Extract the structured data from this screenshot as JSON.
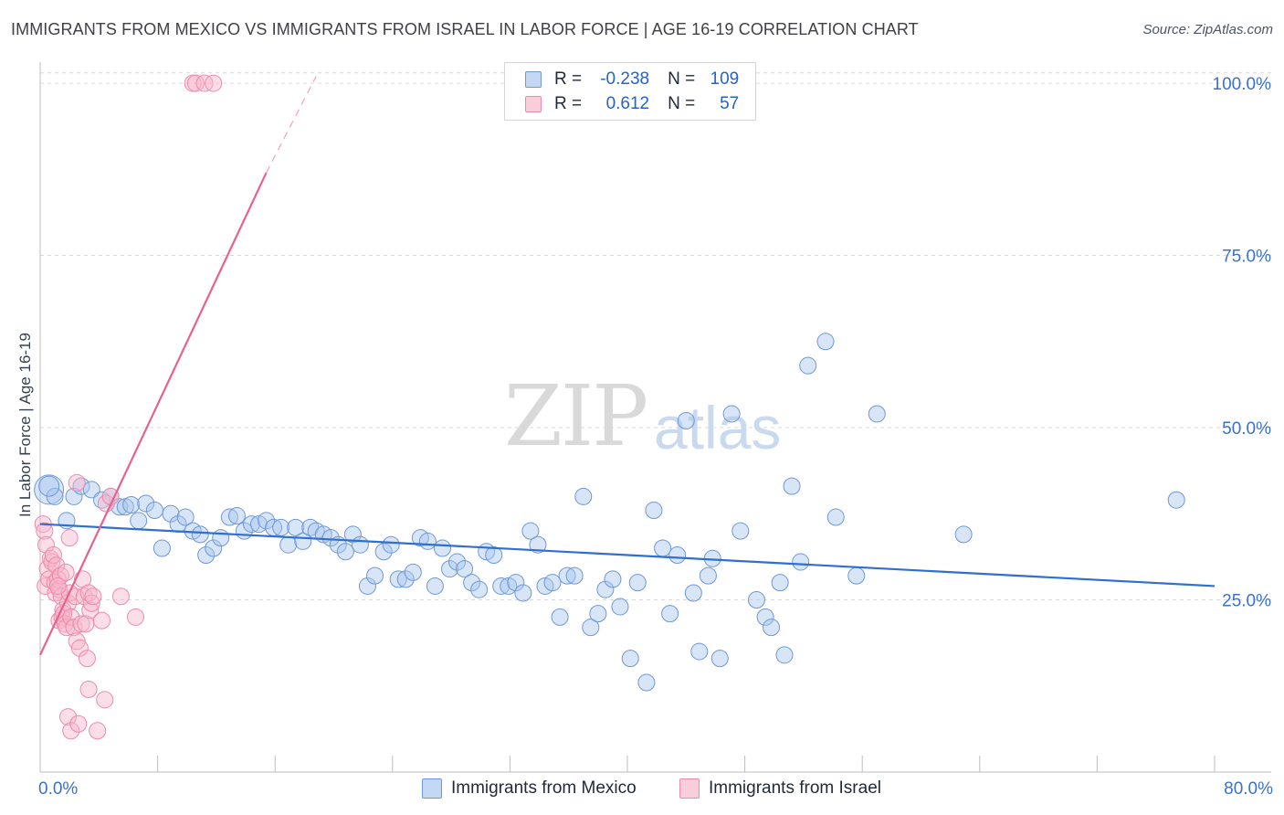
{
  "title": "IMMIGRANTS FROM MEXICO VS IMMIGRANTS FROM ISRAEL IN LABOR FORCE | AGE 16-19 CORRELATION CHART",
  "source": "Source: ZipAtlas.com",
  "watermark": {
    "zip": "ZIP",
    "atlas": "atlas"
  },
  "colors": {
    "blue": "#3b72c8",
    "blue_fill": "#a9c6ee",
    "pink": "#e8628f",
    "pink_fill": "#f6b5c9"
  },
  "legend": {
    "rows": [
      {
        "r_label": "R =",
        "r_value": "-0.238",
        "n_label": "N =",
        "n_value": "109"
      },
      {
        "r_label": "R =",
        "r_value": "0.612",
        "n_label": "N =",
        "n_value": "57"
      }
    ]
  },
  "bottom_legend": [
    "Immigrants from Mexico",
    "Immigrants from Israel"
  ],
  "chart_data": {
    "type": "scatter",
    "title": "IMMIGRANTS FROM MEXICO VS IMMIGRANTS FROM ISRAEL IN LABOR FORCE | AGE 16-19 CORRELATION CHART",
    "xlabel": "",
    "ylabel": "In Labor Force | Age 16-19",
    "xlim": [
      0,
      80
    ],
    "ylim": [
      0,
      102
    ],
    "x_tick_labels": [
      "0.0%",
      "80.0%"
    ],
    "y_ticks": [
      25,
      50,
      75,
      100
    ],
    "y_tick_labels": [
      "25.0%",
      "50.0%",
      "75.0%",
      "100.0%"
    ],
    "grid": true,
    "series": [
      {
        "name": "Immigrants from Mexico",
        "color": "#3b72c8",
        "R": -0.238,
        "N": 109,
        "trend": {
          "x": [
            0,
            80
          ],
          "y": [
            36.0,
            27.0
          ]
        },
        "points": [
          [
            0.6,
            41.0
          ],
          [
            1.0,
            40.0
          ],
          [
            1.8,
            36.5
          ],
          [
            2.3,
            40.0
          ],
          [
            2.8,
            41.5
          ],
          [
            3.5,
            41.0
          ],
          [
            4.2,
            39.5
          ],
          [
            4.8,
            40.0
          ],
          [
            5.4,
            38.5
          ],
          [
            5.8,
            38.5
          ],
          [
            6.2,
            38.8
          ],
          [
            6.7,
            36.5
          ],
          [
            7.2,
            39.0
          ],
          [
            7.8,
            38.0
          ],
          [
            8.3,
            32.5
          ],
          [
            8.9,
            37.5
          ],
          [
            9.4,
            36.0
          ],
          [
            9.9,
            37.0
          ],
          [
            10.4,
            35.0
          ],
          [
            10.9,
            34.5
          ],
          [
            11.3,
            31.5
          ],
          [
            11.8,
            32.5
          ],
          [
            12.3,
            34.0
          ],
          [
            12.9,
            37.0
          ],
          [
            13.4,
            37.2
          ],
          [
            13.9,
            35.0
          ],
          [
            14.4,
            36.0
          ],
          [
            14.9,
            36.0
          ],
          [
            15.4,
            36.5
          ],
          [
            15.9,
            35.5
          ],
          [
            16.4,
            35.5
          ],
          [
            16.9,
            33.0
          ],
          [
            17.4,
            35.5
          ],
          [
            17.9,
            33.5
          ],
          [
            18.4,
            35.5
          ],
          [
            18.8,
            35.0
          ],
          [
            19.3,
            34.5
          ],
          [
            19.8,
            34.0
          ],
          [
            20.3,
            33.0
          ],
          [
            20.8,
            32.0
          ],
          [
            21.3,
            34.5
          ],
          [
            21.8,
            33.0
          ],
          [
            22.3,
            27.0
          ],
          [
            22.8,
            28.5
          ],
          [
            23.4,
            32.0
          ],
          [
            23.9,
            33.0
          ],
          [
            24.4,
            28.0
          ],
          [
            24.9,
            28.0
          ],
          [
            25.4,
            29.0
          ],
          [
            25.9,
            34.0
          ],
          [
            26.4,
            33.5
          ],
          [
            26.9,
            27.0
          ],
          [
            27.4,
            32.5
          ],
          [
            27.9,
            29.5
          ],
          [
            28.4,
            30.5
          ],
          [
            28.9,
            29.5
          ],
          [
            29.4,
            27.5
          ],
          [
            29.9,
            26.5
          ],
          [
            30.4,
            32.0
          ],
          [
            30.9,
            31.5
          ],
          [
            31.4,
            27.0
          ],
          [
            31.9,
            27.0
          ],
          [
            32.4,
            27.5
          ],
          [
            32.9,
            26.0
          ],
          [
            33.4,
            35.0
          ],
          [
            33.9,
            33.0
          ],
          [
            34.4,
            27.0
          ],
          [
            34.9,
            27.5
          ],
          [
            35.4,
            22.5
          ],
          [
            35.9,
            28.5
          ],
          [
            36.4,
            28.5
          ],
          [
            37.0,
            40.0
          ],
          [
            37.5,
            21.0
          ],
          [
            38.0,
            23.0
          ],
          [
            38.5,
            26.5
          ],
          [
            39.0,
            28.0
          ],
          [
            39.5,
            24.0
          ],
          [
            40.2,
            16.5
          ],
          [
            40.7,
            27.5
          ],
          [
            41.3,
            13.0
          ],
          [
            41.8,
            38.0
          ],
          [
            42.4,
            32.5
          ],
          [
            42.9,
            23.0
          ],
          [
            43.4,
            31.5
          ],
          [
            44.0,
            51.0
          ],
          [
            44.5,
            26.0
          ],
          [
            44.9,
            17.5
          ],
          [
            45.5,
            28.5
          ],
          [
            45.8,
            31.0
          ],
          [
            46.3,
            16.5
          ],
          [
            47.1,
            52.0
          ],
          [
            47.7,
            35.0
          ],
          [
            48.8,
            25.0
          ],
          [
            49.4,
            22.5
          ],
          [
            49.8,
            21.0
          ],
          [
            50.4,
            27.5
          ],
          [
            50.7,
            17.0
          ],
          [
            51.2,
            41.5
          ],
          [
            51.8,
            30.5
          ],
          [
            52.3,
            59.0
          ],
          [
            53.5,
            62.5
          ],
          [
            54.2,
            37.0
          ],
          [
            55.6,
            28.5
          ],
          [
            57.0,
            52.0
          ],
          [
            62.9,
            34.5
          ],
          [
            77.4,
            39.5
          ],
          [
            0.6,
            41.5
          ]
        ]
      },
      {
        "name": "Immigrants from Israel",
        "color": "#e8628f",
        "R": 0.612,
        "N": 57,
        "trend": {
          "x": [
            0,
            15.4
          ],
          "y": [
            17.0,
            87.0
          ],
          "dashed_x": [
            15.4,
            18.8
          ],
          "dashed_y": [
            87.0,
            101.0
          ]
        },
        "points": [
          [
            0.2,
            36.0
          ],
          [
            0.3,
            35.0
          ],
          [
            0.35,
            27.0
          ],
          [
            0.4,
            33.0
          ],
          [
            0.5,
            29.5
          ],
          [
            0.6,
            28.0
          ],
          [
            0.7,
            31.0
          ],
          [
            0.8,
            30.5
          ],
          [
            0.9,
            31.5
          ],
          [
            1.0,
            27.5
          ],
          [
            1.05,
            26.0
          ],
          [
            1.1,
            30.0
          ],
          [
            1.2,
            28.0
          ],
          [
            1.3,
            26.5
          ],
          [
            1.3,
            22.0
          ],
          [
            1.4,
            28.5
          ],
          [
            1.45,
            25.5
          ],
          [
            1.5,
            22.5
          ],
          [
            1.55,
            23.5
          ],
          [
            1.6,
            23.0
          ],
          [
            1.7,
            21.5
          ],
          [
            1.75,
            29.0
          ],
          [
            1.8,
            21.0
          ],
          [
            1.9,
            24.5
          ],
          [
            1.9,
            8.0
          ],
          [
            2.0,
            34.0
          ],
          [
            2.0,
            26.0
          ],
          [
            2.1,
            22.5
          ],
          [
            2.1,
            6.0
          ],
          [
            2.3,
            21.0
          ],
          [
            2.4,
            25.5
          ],
          [
            2.5,
            19.0
          ],
          [
            2.6,
            7.0
          ],
          [
            2.7,
            18.0
          ],
          [
            2.8,
            21.5
          ],
          [
            2.9,
            28.0
          ],
          [
            3.0,
            25.5
          ],
          [
            3.1,
            21.5
          ],
          [
            3.2,
            16.5
          ],
          [
            3.3,
            12.0
          ],
          [
            3.3,
            26.0
          ],
          [
            3.4,
            23.5
          ],
          [
            3.5,
            24.5
          ],
          [
            3.6,
            25.5
          ],
          [
            3.9,
            6.0
          ],
          [
            4.2,
            22.0
          ],
          [
            4.4,
            10.5
          ],
          [
            4.5,
            39.0
          ],
          [
            5.5,
            25.5
          ],
          [
            6.5,
            22.5
          ],
          [
            10.4,
            100.0
          ],
          [
            10.6,
            100.0
          ],
          [
            11.2,
            100.0
          ],
          [
            11.8,
            100.0
          ],
          [
            4.8,
            40.0
          ],
          [
            2.5,
            42.0
          ],
          [
            1.2,
            27.0
          ]
        ]
      }
    ]
  }
}
